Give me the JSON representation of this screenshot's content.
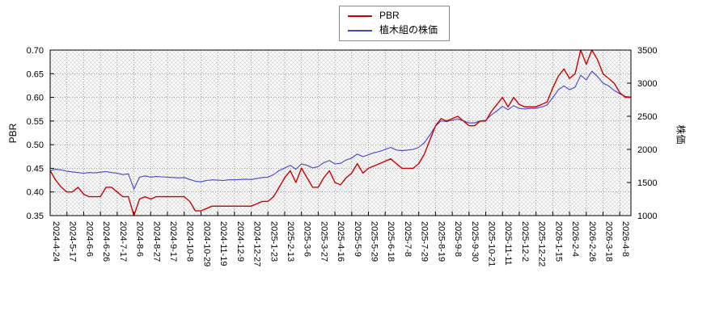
{
  "chart_data": {
    "type": "line",
    "title": "",
    "legend_position": "top-center",
    "grid": "dotted",
    "background": "crosshatch",
    "x_tick_labels": [
      "2024-4-24",
      "2024-5-17",
      "2024-6-6",
      "2024-6-26",
      "2024-7-17",
      "2024-8-6",
      "2024-8-27",
      "2024-9-17",
      "2024-10-8",
      "2024-10-29",
      "2024-11-19",
      "2024-12-9",
      "2024-12-27",
      "2025-1-23",
      "2025-2-13",
      "2025-3-6",
      "2025-3-27",
      "2025-4-16",
      "2025-5-9",
      "2025-5-29",
      "2025-6-18",
      "2025-7-8",
      "2025-7-29",
      "2025-8-19",
      "2025-9-8",
      "2025-9-30",
      "2025-10-21",
      "2025-11-11",
      "2025-12-2",
      "2025-12-22",
      "2026-1-15",
      "2026-2-4",
      "2026-2-26",
      "2026-3-18",
      "2026-4-8"
    ],
    "left_axis": {
      "label": "PBR",
      "min": 0.35,
      "max": 0.7,
      "ticks": [
        0.35,
        0.4,
        0.45,
        0.5,
        0.55,
        0.6,
        0.65,
        0.7
      ]
    },
    "right_axis": {
      "label": "株価",
      "min": 1000,
      "max": 3500,
      "ticks": [
        1000,
        1500,
        2000,
        2500,
        3000,
        3500
      ]
    },
    "series": [
      {
        "name": "PBR",
        "axis": "left",
        "color": "#cc0000",
        "values": [
          0.445,
          0.425,
          0.41,
          0.4,
          0.4,
          0.41,
          0.395,
          0.39,
          0.39,
          0.39,
          0.41,
          0.41,
          0.4,
          0.39,
          0.39,
          0.35,
          0.385,
          0.39,
          0.385,
          0.39,
          0.39,
          0.39,
          0.39,
          0.39,
          0.39,
          0.38,
          0.36,
          0.36,
          0.365,
          0.37,
          0.37,
          0.37,
          0.37,
          0.37,
          0.37,
          0.37,
          0.37,
          0.375,
          0.38,
          0.38,
          0.39,
          0.41,
          0.43,
          0.445,
          0.42,
          0.45,
          0.43,
          0.41,
          0.41,
          0.43,
          0.445,
          0.42,
          0.415,
          0.43,
          0.44,
          0.46,
          0.44,
          0.45,
          0.455,
          0.46,
          0.465,
          0.47,
          0.46,
          0.45,
          0.45,
          0.45,
          0.46,
          0.48,
          0.51,
          0.54,
          0.555,
          0.55,
          0.555,
          0.56,
          0.55,
          0.54,
          0.54,
          0.55,
          0.55,
          0.57,
          0.585,
          0.6,
          0.58,
          0.6,
          0.585,
          0.58,
          0.58,
          0.58,
          0.585,
          0.59,
          0.62,
          0.645,
          0.66,
          0.64,
          0.65,
          0.7,
          0.67,
          0.7,
          0.68,
          0.65,
          0.64,
          0.63,
          0.61,
          0.6,
          0.6
        ]
      },
      {
        "name": "植木組の株価",
        "axis": "right",
        "color": "#4444cc",
        "values": [
          1680,
          1700,
          1690,
          1670,
          1660,
          1650,
          1640,
          1650,
          1645,
          1655,
          1665,
          1650,
          1640,
          1620,
          1630,
          1400,
          1580,
          1600,
          1580,
          1590,
          1585,
          1580,
          1575,
          1570,
          1575,
          1545,
          1520,
          1510,
          1530,
          1540,
          1535,
          1530,
          1540,
          1540,
          1545,
          1550,
          1545,
          1560,
          1575,
          1580,
          1620,
          1680,
          1720,
          1760,
          1700,
          1780,
          1760,
          1720,
          1740,
          1800,
          1830,
          1780,
          1790,
          1840,
          1870,
          1930,
          1890,
          1920,
          1950,
          1970,
          2000,
          2030,
          1990,
          1980,
          1990,
          2000,
          2030,
          2100,
          2220,
          2350,
          2430,
          2420,
          2440,
          2460,
          2430,
          2400,
          2400,
          2430,
          2440,
          2520,
          2580,
          2650,
          2600,
          2660,
          2620,
          2610,
          2620,
          2620,
          2640,
          2670,
          2780,
          2900,
          2960,
          2900,
          2940,
          3120,
          3050,
          3180,
          3100,
          3000,
          2960,
          2890,
          2840,
          2800,
          2790
        ]
      }
    ],
    "colors": {
      "plot_border": "#000000",
      "grid_line": "#7a7a7a",
      "hatch": "#cfcfcf",
      "tick_text": "#000000"
    }
  }
}
